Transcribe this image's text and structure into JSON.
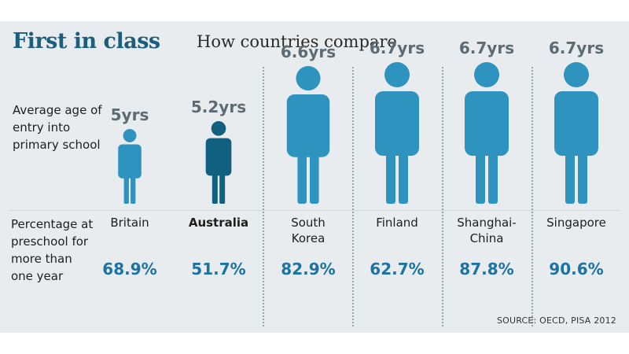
{
  "title": "First in class",
  "subtitle": "How countries compare",
  "row_labels": {
    "age": "Average age of entry into primary school",
    "preschool": "Percentage at preschool for more than one year"
  },
  "source": "SOURCE: OECD, PISA 2012",
  "colors": {
    "figure": "#2e94bf",
    "highlight": "#12607f",
    "title": "#1b5f7c",
    "percent": "#1b72a3",
    "age_label": "#5d6b75"
  },
  "chart_data": {
    "type": "pictograph",
    "categories": [
      "Britain",
      "Australia",
      "South Korea",
      "Finland",
      "Shanghai-China",
      "Singapore"
    ],
    "highlight": "Australia",
    "series": [
      {
        "values": [
          5,
          5.2,
          6.6,
          6.7,
          6.7,
          6.7
        ],
        "labels": [
          "5yrs",
          "5.2yrs",
          "6.6yrs",
          "6.7yrs",
          "6.7yrs",
          "6.7yrs"
        ]
      },
      {
        "values": [
          68.9,
          51.7,
          82.9,
          62.7,
          87.8,
          90.6
        ],
        "labels": [
          "68.9%",
          "51.7%",
          "82.9%",
          "62.7%",
          "87.8%",
          "90.6%"
        ]
      }
    ],
    "country_labels": [
      "Britain",
      "Australia",
      "South\nKorea",
      "Finland",
      "Shanghai-\nChina",
      "Singapore"
    ]
  }
}
